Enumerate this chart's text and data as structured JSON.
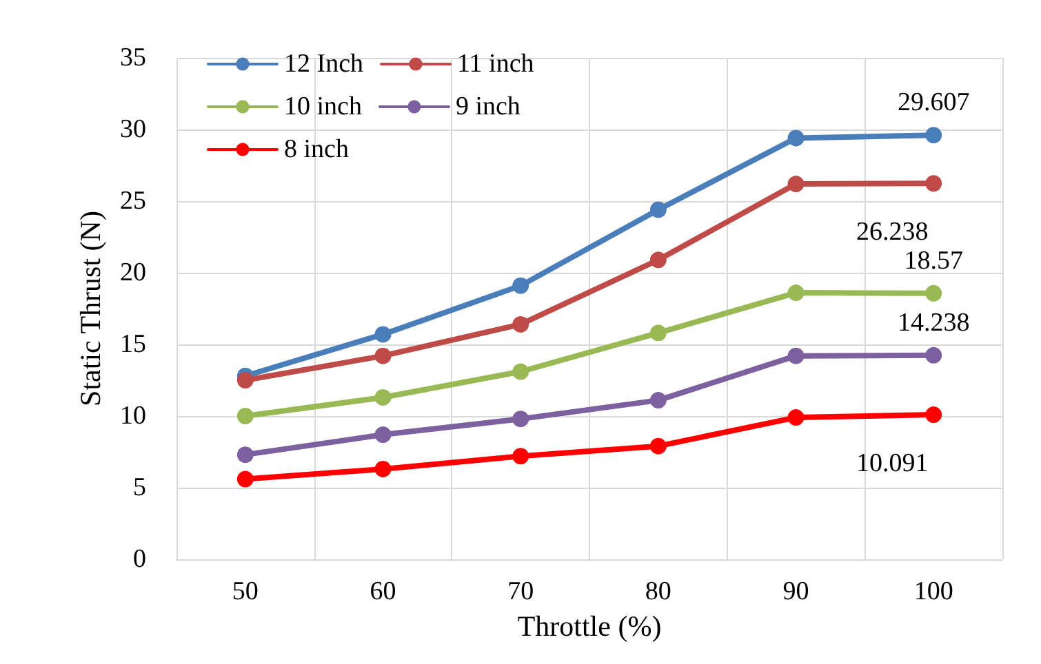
{
  "chart_data": {
    "type": "line",
    "xlabel": "Throttle (%)",
    "ylabel": "Static Thrust (N)",
    "categories": [
      "50",
      "60",
      "70",
      "80",
      "90",
      "100"
    ],
    "series": [
      {
        "name": "12 Inch",
        "color": "#4a7ebb",
        "values": [
          12.8,
          15.7,
          19.1,
          24.4,
          29.4,
          29.607
        ],
        "value_labels": [
          null,
          null,
          null,
          null,
          null,
          "29.607"
        ]
      },
      {
        "name": "11 inch",
        "color": "#be4b48",
        "values": [
          12.5,
          14.2,
          16.4,
          20.9,
          26.2,
          26.238
        ],
        "value_labels": [
          null,
          null,
          null,
          null,
          null,
          "26.238"
        ]
      },
      {
        "name": "10 inch",
        "color": "#98b954",
        "values": [
          10.0,
          11.3,
          13.1,
          15.8,
          18.6,
          18.57
        ],
        "value_labels": [
          null,
          null,
          null,
          null,
          null,
          "18.57"
        ]
      },
      {
        "name": "9 inch",
        "color": "#7d60a0",
        "values": [
          7.3,
          8.7,
          9.8,
          11.1,
          14.2,
          14.238
        ],
        "value_labels": [
          null,
          null,
          null,
          null,
          null,
          "14.238"
        ]
      },
      {
        "name": "8 inch",
        "color": "#ff0000",
        "values": [
          5.6,
          6.3,
          7.2,
          7.9,
          9.9,
          10.091
        ],
        "value_labels": [
          null,
          null,
          null,
          null,
          null,
          "10.091"
        ]
      }
    ],
    "ylim": [
      0,
      35
    ],
    "yticks": [
      0,
      5,
      10,
      15,
      20,
      25,
      30,
      35
    ],
    "grid": true,
    "legend": "top left",
    "marker": "circle",
    "line_style": "solid"
  }
}
